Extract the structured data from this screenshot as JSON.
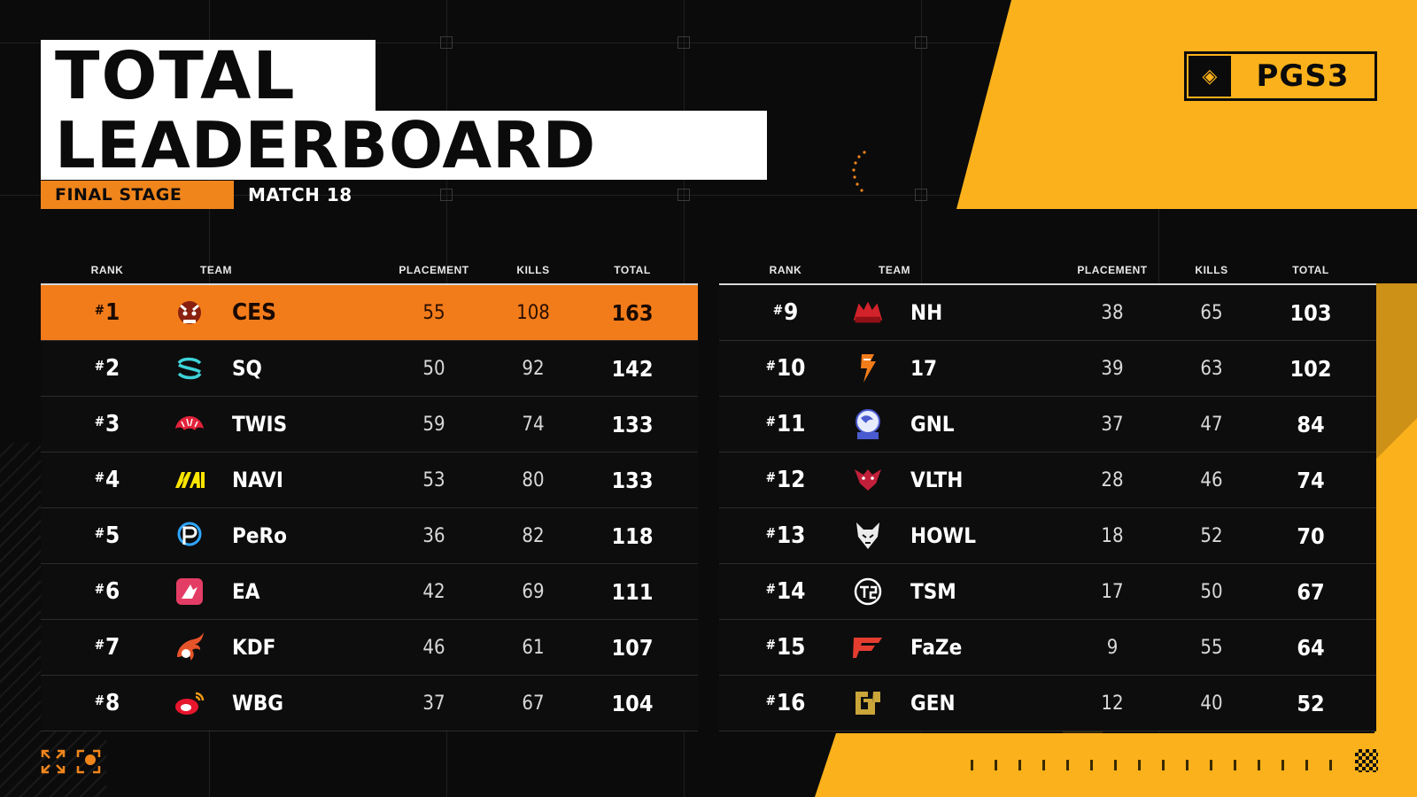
{
  "event_logo": {
    "emblem": "PGS",
    "text": "PGS3"
  },
  "title": {
    "line1": "TOTAL",
    "line2": "LEADERBOARD"
  },
  "stage": {
    "badge": "FINAL STAGE",
    "match": "MATCH 18"
  },
  "columns": {
    "rank": "RANK",
    "team": "TEAM",
    "placement": "PLACEMENT",
    "kills": "KILLS",
    "total": "TOTAL"
  },
  "colors": {
    "accent_orange": "#f37c1a",
    "accent_yellow": "#fbb11b",
    "background": "#0b0b0b"
  },
  "left_table": [
    {
      "rank": "1",
      "team": "CES",
      "placement": "55",
      "kills": "108",
      "total": "163",
      "icon": "ces-logo-icon"
    },
    {
      "rank": "2",
      "team": "SQ",
      "placement": "50",
      "kills": "92",
      "total": "142",
      "icon": "sq-logo-icon"
    },
    {
      "rank": "3",
      "team": "TWIS",
      "placement": "59",
      "kills": "74",
      "total": "133",
      "icon": "twis-logo-icon"
    },
    {
      "rank": "4",
      "team": "NAVI",
      "placement": "53",
      "kills": "80",
      "total": "133",
      "icon": "navi-logo-icon"
    },
    {
      "rank": "5",
      "team": "PeRo",
      "placement": "36",
      "kills": "82",
      "total": "118",
      "icon": "pero-logo-icon"
    },
    {
      "rank": "6",
      "team": "EA",
      "placement": "42",
      "kills": "69",
      "total": "111",
      "icon": "ea-logo-icon"
    },
    {
      "rank": "7",
      "team": "KDF",
      "placement": "46",
      "kills": "61",
      "total": "107",
      "icon": "kdf-logo-icon"
    },
    {
      "rank": "8",
      "team": "WBG",
      "placement": "37",
      "kills": "67",
      "total": "104",
      "icon": "wbg-logo-icon"
    }
  ],
  "right_table": [
    {
      "rank": "9",
      "team": "NH",
      "placement": "38",
      "kills": "65",
      "total": "103",
      "icon": "nh-logo-icon"
    },
    {
      "rank": "10",
      "team": "17",
      "placement": "39",
      "kills": "63",
      "total": "102",
      "icon": "17-logo-icon"
    },
    {
      "rank": "11",
      "team": "GNL",
      "placement": "37",
      "kills": "47",
      "total": "84",
      "icon": "gnl-logo-icon"
    },
    {
      "rank": "12",
      "team": "VLTH",
      "placement": "28",
      "kills": "46",
      "total": "74",
      "icon": "vlth-logo-icon"
    },
    {
      "rank": "13",
      "team": "HOWL",
      "placement": "18",
      "kills": "52",
      "total": "70",
      "icon": "howl-logo-icon"
    },
    {
      "rank": "14",
      "team": "TSM",
      "placement": "17",
      "kills": "50",
      "total": "67",
      "icon": "tsm-logo-icon"
    },
    {
      "rank": "15",
      "team": "FaZe",
      "placement": "9",
      "kills": "55",
      "total": "64",
      "icon": "faze-logo-icon"
    },
    {
      "rank": "16",
      "team": "GEN",
      "placement": "12",
      "kills": "40",
      "total": "52",
      "icon": "gen-logo-icon"
    }
  ]
}
